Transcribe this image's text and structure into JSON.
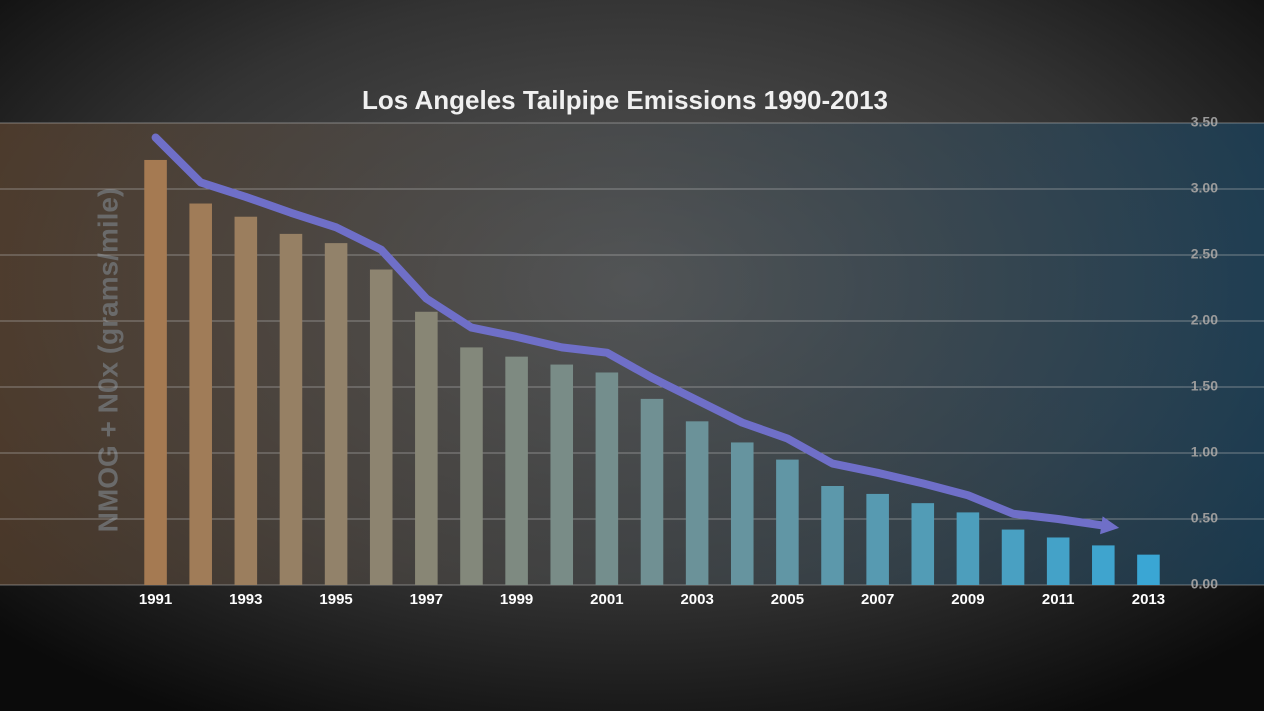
{
  "chart_data": {
    "type": "bar",
    "title": "Los Angeles Tailpipe Emissions 1990-2013",
    "y_label": "NMOG + N0x (grams/mile)",
    "categories": [
      "1991",
      null,
      "1993",
      null,
      "1995",
      null,
      "1997",
      null,
      "1999",
      null,
      "2001",
      null,
      "2003",
      null,
      "2005",
      null,
      "2007",
      null,
      "2009",
      null,
      "2011",
      null,
      "2013"
    ],
    "values": [
      3.22,
      2.89,
      2.79,
      2.66,
      2.59,
      2.39,
      2.07,
      1.8,
      1.73,
      1.67,
      1.61,
      1.41,
      1.24,
      1.08,
      0.95,
      0.75,
      0.69,
      0.62,
      0.55,
      0.42,
      0.36,
      0.3,
      0.23
    ],
    "trend_values": [
      3.39,
      3.05,
      2.94,
      2.82,
      2.71,
      2.54,
      2.17,
      1.95,
      1.88,
      1.8,
      1.76,
      1.57,
      1.4,
      1.23,
      1.11,
      0.92,
      0.85,
      0.77,
      0.68,
      0.54,
      0.5,
      0.45,
      null
    ],
    "trend_color": "#6f6fc8",
    "color_start": "#a57a52",
    "color_end": "#3aa6d4",
    "ylim": [
      0,
      3.5
    ],
    "yticks": [
      {
        "value": 0,
        "label": "0.00"
      },
      {
        "value": 0.5,
        "label": "0.50"
      },
      {
        "value": 1,
        "label": "1.00"
      },
      {
        "value": 1.5,
        "label": "1.50"
      },
      {
        "value": 2,
        "label": "2.00"
      },
      {
        "value": 2.5,
        "label": "2.50"
      },
      {
        "value": 3,
        "label": "3.00"
      },
      {
        "value": 3.5,
        "label": "3.50"
      }
    ],
    "grid": true
  }
}
